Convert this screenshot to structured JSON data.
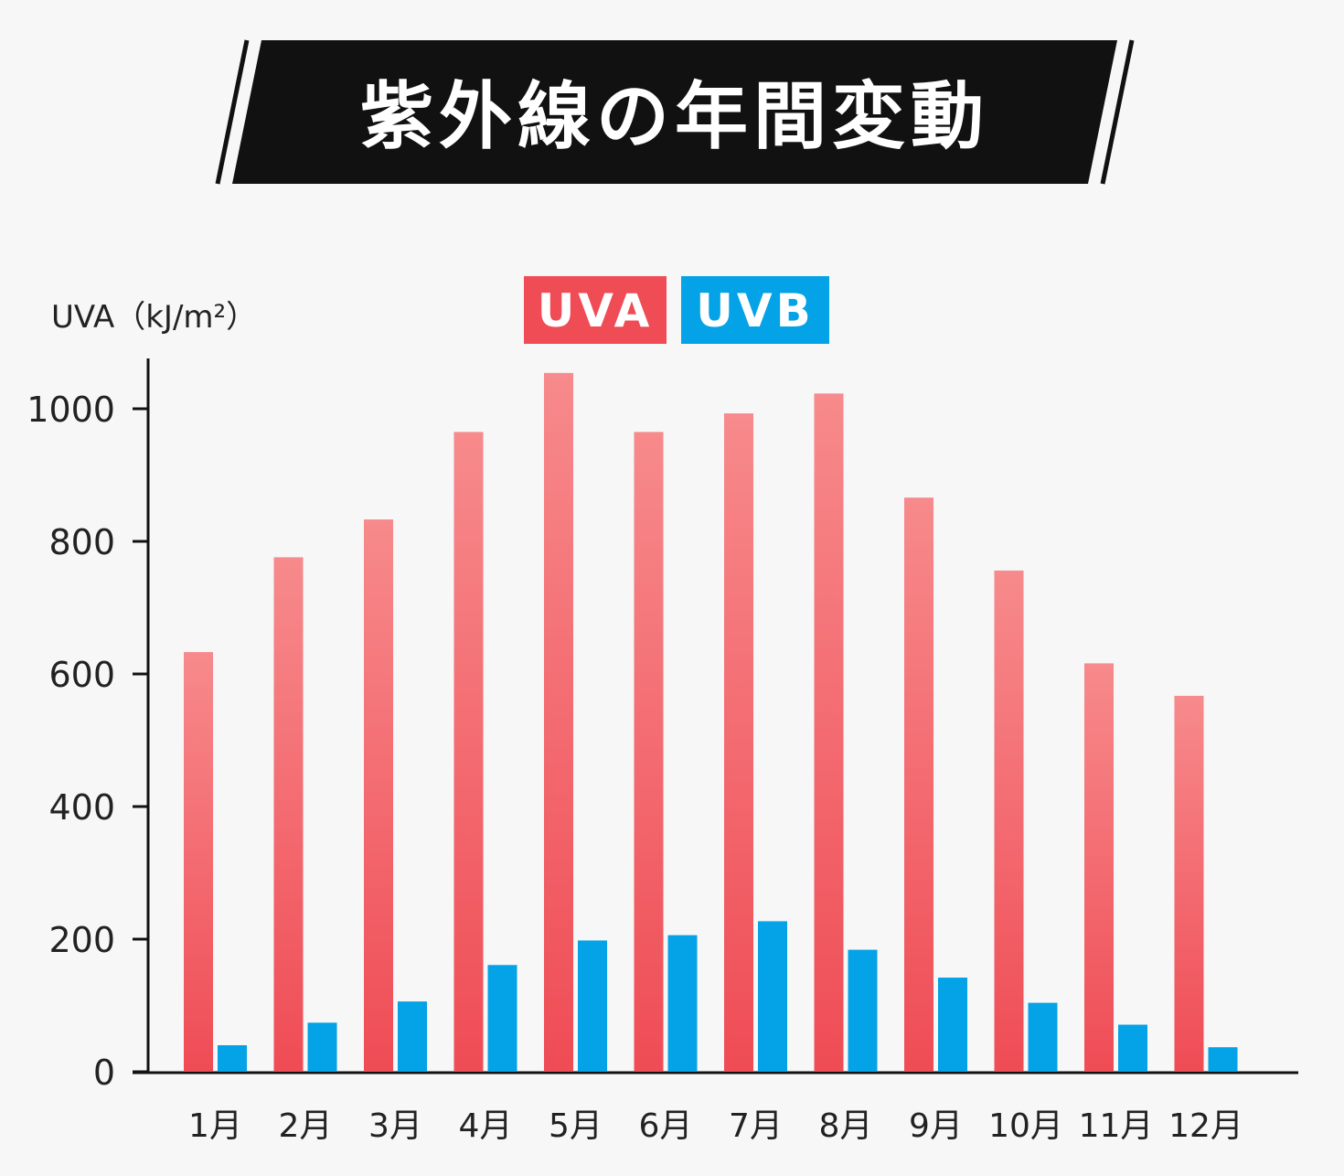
{
  "chart_data": {
    "type": "bar",
    "title": "紫外線の年間変動",
    "ylabel": "UVA（kJ/m²）",
    "xlabel": "",
    "categories": [
      "1月",
      "2月",
      "3月",
      "4月",
      "5月",
      "6月",
      "7月",
      "8月",
      "9月",
      "10月",
      "11月",
      "12月"
    ],
    "series": [
      {
        "name": "UVA",
        "color": "#ef4c55",
        "values": [
          633,
          776,
          833,
          965,
          1054,
          965,
          993,
          1023,
          866,
          756,
          616,
          567
        ]
      },
      {
        "name": "UVB",
        "color": "#04a2e6",
        "values": [
          40,
          74,
          106,
          161,
          198,
          206,
          227,
          184,
          142,
          104,
          71,
          37
        ]
      }
    ],
    "ylim": [
      0,
      1080
    ],
    "yticks": [
      0,
      200,
      400,
      600,
      800,
      1000
    ],
    "grid": false,
    "legend_position": "top-center"
  }
}
